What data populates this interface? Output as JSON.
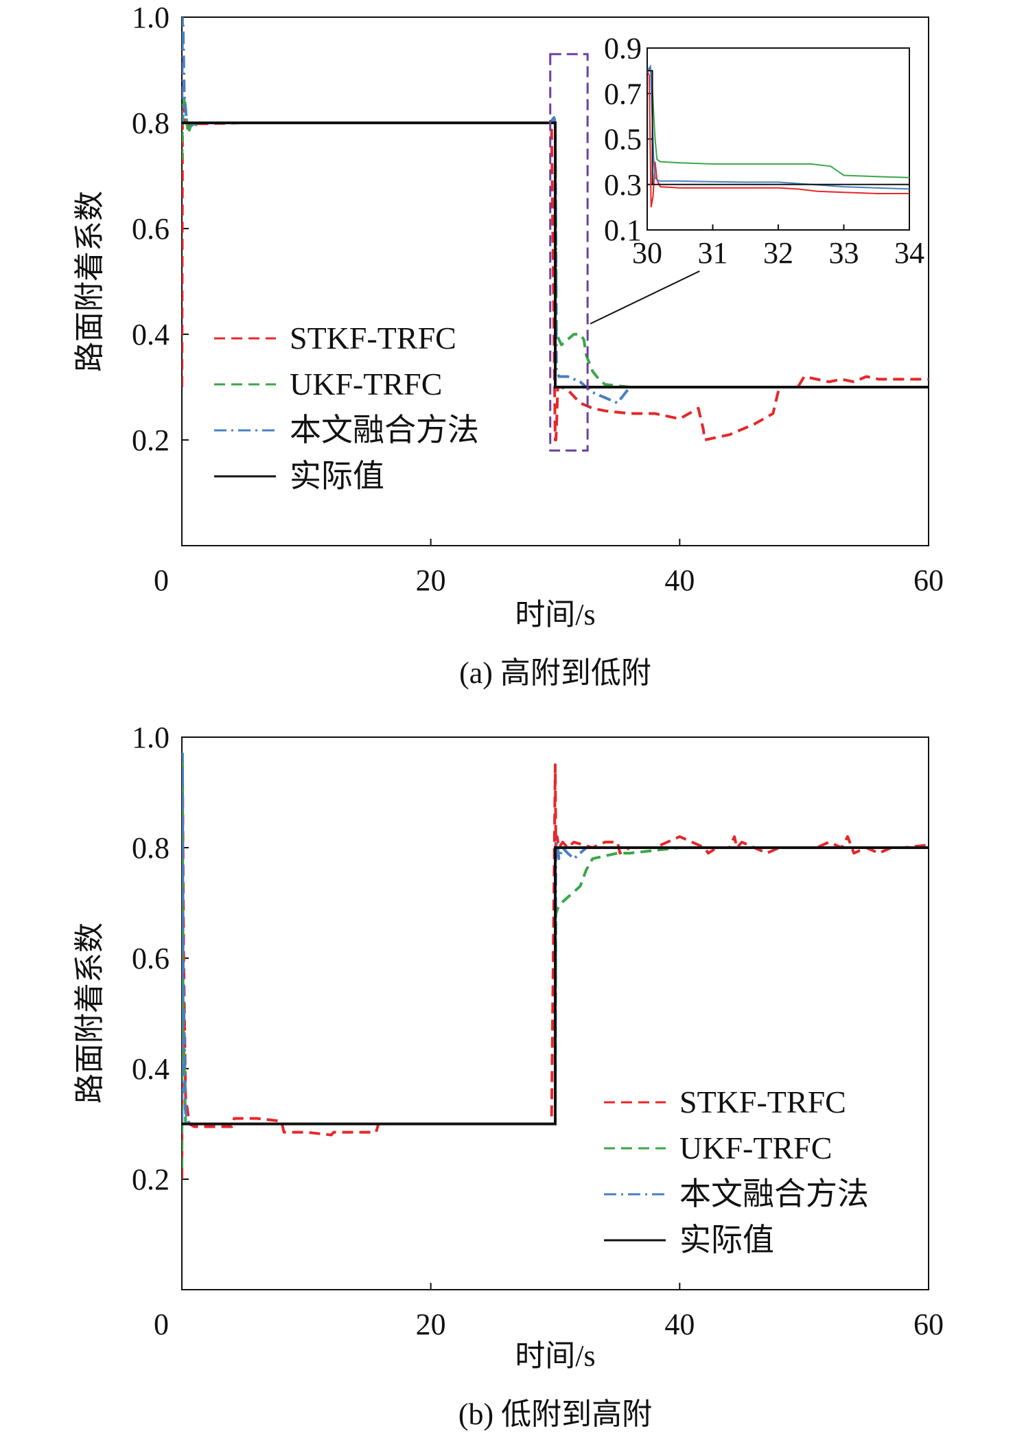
{
  "chart_data": [
    {
      "type": "line",
      "caption": "(a) 高附到低附",
      "xlabel": "时间/s",
      "ylabel": "路面附着系数",
      "xlim": [
        0,
        60
      ],
      "ylim": [
        0,
        1.0
      ],
      "xticks": [
        "0",
        "20",
        "40",
        "60"
      ],
      "yticks": [
        "0.2",
        "0.4",
        "0.6",
        "0.8",
        "1.0"
      ],
      "legend_placement": "center-left",
      "series": [
        {
          "name": "STKF-TRFC",
          "color": "#e8262a",
          "style": "dashed",
          "x": [
            0.0,
            0.05,
            0.15,
            0.3,
            0.6,
            1.0,
            5,
            10,
            15,
            20,
            25,
            29.7,
            30.0,
            30.05,
            30.1,
            30.2,
            30.5,
            31,
            32,
            33,
            34,
            36,
            38,
            40,
            41.5,
            41.9,
            42,
            44,
            46,
            47.5,
            48,
            49.5,
            50,
            52,
            53,
            54,
            55,
            56,
            58,
            60
          ],
          "y": [
            0.3,
            0.8,
            0.83,
            0.8,
            0.795,
            0.798,
            0.8,
            0.8,
            0.8,
            0.8,
            0.8,
            0.8,
            0.2,
            0.2,
            0.22,
            0.3,
            0.3,
            0.295,
            0.27,
            0.26,
            0.255,
            0.25,
            0.25,
            0.24,
            0.26,
            0.22,
            0.2,
            0.21,
            0.23,
            0.25,
            0.3,
            0.3,
            0.32,
            0.31,
            0.315,
            0.31,
            0.32,
            0.315,
            0.315,
            0.315
          ]
        },
        {
          "name": "UKF-TRFC",
          "color": "#3aa64a",
          "style": "dashed",
          "x": [
            0.0,
            0.05,
            0.2,
            0.5,
            0.8,
            1.0,
            1.2,
            5,
            10,
            15,
            20,
            25,
            29.6,
            29.9,
            30.0,
            30.1,
            30.3,
            30.5,
            31,
            31.5,
            32,
            32.3,
            32.5,
            33,
            33.5,
            34,
            36,
            38,
            40
          ],
          "y": [
            0.73,
            0.8,
            0.85,
            0.78,
            0.8,
            0.79,
            0.8,
            0.8,
            0.8,
            0.8,
            0.8,
            0.8,
            0.8,
            0.81,
            0.8,
            0.4,
            0.39,
            0.38,
            0.39,
            0.4,
            0.4,
            0.39,
            0.36,
            0.33,
            0.315,
            0.305,
            0.3,
            0.3,
            0.3
          ]
        },
        {
          "name": "本文融合方法",
          "color": "#4a7fc1",
          "style": "dashdot",
          "x": [
            0.0,
            0.05,
            0.1,
            0.2,
            0.4,
            0.8,
            1.0,
            5,
            10,
            15,
            20,
            25,
            29.6,
            29.9,
            30.0,
            30.1,
            30.3,
            31,
            32,
            32.5,
            33,
            34,
            35,
            36,
            38
          ],
          "y": [
            0.8,
            1.0,
            0.98,
            0.85,
            0.8,
            0.795,
            0.8,
            0.8,
            0.8,
            0.8,
            0.8,
            0.8,
            0.8,
            0.81,
            0.8,
            0.33,
            0.32,
            0.32,
            0.31,
            0.3,
            0.29,
            0.28,
            0.27,
            0.3,
            0.3
          ]
        },
        {
          "name": "实际值",
          "color": "#111111",
          "style": "solid",
          "x": [
            0.0,
            30.0,
            30.0,
            60.0
          ],
          "y": [
            0.8,
            0.8,
            0.3,
            0.3
          ]
        }
      ],
      "inset": {
        "xlim": [
          30,
          34
        ],
        "ylim": [
          0.1,
          0.9
        ],
        "xticks": [
          "30",
          "31",
          "32",
          "33",
          "34"
        ],
        "yticks": [
          "0.1",
          "0.3",
          "0.5",
          "0.7",
          "0.9"
        ],
        "series": [
          {
            "name": "STKF-TRFC",
            "color": "#e8262a",
            "style": "dashed",
            "x": [
              30.0,
              30.03,
              30.06,
              30.09,
              30.12,
              30.15,
              30.2,
              30.5,
              31,
              31.5,
              32,
              32.3,
              32.6,
              33,
              33.5,
              34
            ],
            "y": [
              0.8,
              0.78,
              0.2,
              0.25,
              0.4,
              0.32,
              0.29,
              0.285,
              0.285,
              0.285,
              0.285,
              0.28,
              0.27,
              0.265,
              0.26,
              0.26
            ]
          },
          {
            "name": "UKF-TRFC",
            "color": "#3aa64a",
            "style": "dashed",
            "x": [
              30.0,
              30.05,
              30.08,
              30.1,
              30.12,
              30.15,
              30.2,
              30.5,
              31,
              31.5,
              32,
              32.5,
              32.8,
              33,
              33.5,
              34
            ],
            "y": [
              0.8,
              0.81,
              0.72,
              0.6,
              0.5,
              0.41,
              0.4,
              0.395,
              0.39,
              0.39,
              0.39,
              0.39,
              0.38,
              0.34,
              0.335,
              0.33
            ]
          },
          {
            "name": "本文融合方法",
            "color": "#4a7fc1",
            "style": "dashdot",
            "x": [
              30.0,
              30.05,
              30.1,
              30.12,
              30.15,
              30.2,
              30.5,
              31,
              31.5,
              32,
              32.5,
              33,
              33.5,
              34
            ],
            "y": [
              0.8,
              0.82,
              0.4,
              0.33,
              0.32,
              0.315,
              0.315,
              0.312,
              0.31,
              0.31,
              0.3,
              0.29,
              0.285,
              0.28
            ]
          },
          {
            "name": "实际值",
            "color": "#111111",
            "style": "solid",
            "x": [
              30.0,
              30.08,
              30.08,
              34
            ],
            "y": [
              0.8,
              0.8,
              0.3,
              0.3
            ]
          }
        ]
      }
    },
    {
      "type": "line",
      "caption": "(b) 低附到高附",
      "xlabel": "时间/s",
      "ylabel": "路面附着系数",
      "xlim": [
        0,
        60
      ],
      "ylim": [
        0,
        1.0
      ],
      "xticks": [
        "0",
        "20",
        "40",
        "60"
      ],
      "yticks": [
        "0.2",
        "0.4",
        "0.6",
        "0.8",
        "1.0"
      ],
      "legend_placement": "bottom-right",
      "series": [
        {
          "name": "STKF-TRFC",
          "color": "#e8262a",
          "style": "dashed",
          "x": [
            0.0,
            0.05,
            0.15,
            0.3,
            0.6,
            1.0,
            2,
            4,
            4.2,
            6,
            8,
            8.2,
            10,
            12,
            12.2,
            14,
            15.6,
            15.8,
            20,
            25,
            29.7,
            30.0,
            30.05,
            30.1,
            30.15,
            30.3,
            30.6,
            31,
            31.5,
            33,
            34,
            35,
            35.2,
            36,
            37,
            38,
            40,
            42,
            42.3,
            43,
            44,
            44.4,
            44.6,
            45,
            46,
            47,
            48,
            49,
            50,
            51,
            52,
            53,
            53.5,
            54,
            55,
            56,
            57,
            58,
            60
          ],
          "y": [
            0.2,
            0.95,
            0.6,
            0.35,
            0.3,
            0.295,
            0.295,
            0.295,
            0.31,
            0.31,
            0.305,
            0.285,
            0.285,
            0.28,
            0.285,
            0.285,
            0.285,
            0.3,
            0.3,
            0.3,
            0.3,
            0.95,
            0.8,
            0.78,
            0.82,
            0.8,
            0.81,
            0.8,
            0.81,
            0.8,
            0.81,
            0.81,
            0.79,
            0.8,
            0.8,
            0.8,
            0.82,
            0.8,
            0.79,
            0.8,
            0.8,
            0.82,
            0.8,
            0.81,
            0.8,
            0.79,
            0.8,
            0.8,
            0.8,
            0.8,
            0.81,
            0.8,
            0.82,
            0.79,
            0.8,
            0.79,
            0.8,
            0.8,
            0.805
          ]
        },
        {
          "name": "UKF-TRFC",
          "color": "#3aa64a",
          "style": "dashed",
          "x": [
            0.0,
            0.05,
            0.1,
            0.3,
            0.6,
            1.0,
            5,
            10,
            15,
            20,
            25,
            29.8,
            30.0,
            30.05,
            30.2,
            30.5,
            31,
            31.5,
            32,
            32.5,
            33,
            34,
            35,
            36,
            38,
            40,
            45,
            50,
            55,
            60
          ],
          "y": [
            0.22,
            0.95,
            0.5,
            0.3,
            0.3,
            0.3,
            0.3,
            0.3,
            0.3,
            0.3,
            0.3,
            0.3,
            0.3,
            0.68,
            0.69,
            0.7,
            0.71,
            0.72,
            0.73,
            0.76,
            0.78,
            0.785,
            0.79,
            0.79,
            0.795,
            0.8,
            0.8,
            0.8,
            0.8,
            0.8
          ]
        },
        {
          "name": "本文融合方法",
          "color": "#4a7fc1",
          "style": "dashdot",
          "x": [
            0.0,
            0.05,
            0.1,
            0.3,
            0.6,
            1.0,
            5,
            10,
            15,
            20,
            25,
            29.8,
            30.0,
            30.05,
            30.15,
            30.3,
            30.6,
            31,
            31.5,
            32,
            32.5,
            33,
            34,
            35,
            40,
            45,
            50,
            55,
            60
          ],
          "y": [
            0.3,
            0.97,
            0.6,
            0.32,
            0.3,
            0.3,
            0.3,
            0.3,
            0.3,
            0.3,
            0.3,
            0.3,
            0.3,
            0.8,
            0.81,
            0.78,
            0.8,
            0.79,
            0.78,
            0.79,
            0.8,
            0.8,
            0.8,
            0.8,
            0.8,
            0.8,
            0.8,
            0.8,
            0.8
          ]
        },
        {
          "name": "实际值",
          "color": "#111111",
          "style": "solid",
          "x": [
            0.0,
            30.0,
            30.0,
            60.0
          ],
          "y": [
            0.3,
            0.3,
            0.8,
            0.8
          ]
        }
      ]
    }
  ]
}
